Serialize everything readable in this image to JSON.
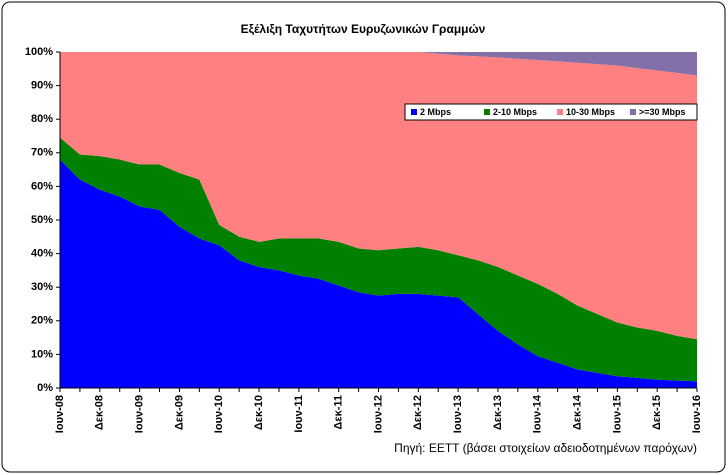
{
  "chart_data": {
    "type": "stacked_area",
    "title": "Εξέλιξη Ταχυτήτων Ευρυζωνικών Γραμμών",
    "source": "Πηγή: ΕΕΤΤ (βάσει στοιχείων αδειοδοτημένων παρόχων)",
    "categories": [
      "Ιουν-08",
      null,
      "Δεκ-08",
      null,
      "Ιουν-09",
      null,
      "Δεκ-09",
      null,
      "Ιουν-10",
      null,
      "Δεκ-10",
      null,
      "Ιουν-11",
      null,
      "Δεκ-11",
      null,
      "Ιουν-12",
      null,
      "Δεκ-12",
      null,
      "Ιουν-13",
      null,
      "Δεκ-13",
      null,
      "Ιουν-14",
      null,
      "Δεκ-14",
      null,
      "Ιουν-15",
      null,
      "Δεκ-15",
      null,
      "Ιουν-16"
    ],
    "series": [
      {
        "name": "2 Mbps",
        "color": "#0000ff",
        "values": [
          68,
          62,
          59,
          57,
          54,
          53,
          48,
          44.5,
          42.5,
          38,
          36,
          35,
          33.5,
          32.5,
          30.5,
          28.5,
          27.5,
          28,
          28,
          27.5,
          27,
          22,
          17,
          13,
          9.5,
          7.5,
          5.5,
          4.5,
          3.5,
          3,
          2.5,
          2.2,
          2
        ]
      },
      {
        "name": "2-10 Mbps",
        "color": "#008000",
        "values": [
          6.5,
          7.5,
          10,
          11,
          12.5,
          13.5,
          16,
          17.5,
          6,
          7,
          7.5,
          9.5,
          11,
          12,
          13,
          13,
          13.5,
          13.5,
          14,
          13.5,
          12.5,
          16,
          19,
          20.5,
          21.5,
          20.5,
          19,
          17.5,
          16,
          15,
          14.5,
          13.3,
          12.5
        ]
      },
      {
        "name": "10-30 Mbps",
        "color": "#ff8080",
        "values": [
          25.5,
          30.5,
          31,
          32,
          33.5,
          33.5,
          36,
          38,
          51.5,
          55,
          56.5,
          55.5,
          55.5,
          55.5,
          56.5,
          58.5,
          59,
          58.5,
          58,
          58.5,
          59.5,
          60.7,
          62.4,
          64.5,
          66.6,
          69.2,
          72.3,
          74.4,
          76.5,
          77.2,
          77.5,
          78.3,
          78.5
        ]
      },
      {
        "name": ">=30 Mbps",
        "color": "#8470a8",
        "values": [
          0,
          0,
          0,
          0,
          0,
          0,
          0,
          0,
          0,
          0,
          0,
          0,
          0,
          0,
          0,
          0,
          0,
          0,
          0,
          0.5,
          1,
          1.3,
          1.6,
          2,
          2.4,
          2.8,
          3.2,
          3.6,
          4,
          4.8,
          5.5,
          6.2,
          7
        ]
      }
    ],
    "ylim": [
      0,
      100
    ],
    "yticks": [
      {
        "value": 0,
        "label": "0%"
      },
      {
        "value": 10,
        "label": "10%"
      },
      {
        "value": 20,
        "label": "20%"
      },
      {
        "value": 30,
        "label": "30%"
      },
      {
        "value": 40,
        "label": "40%"
      },
      {
        "value": 50,
        "label": "50%"
      },
      {
        "value": 60,
        "label": "60%"
      },
      {
        "value": 70,
        "label": "70%"
      },
      {
        "value": 80,
        "label": "80%"
      },
      {
        "value": 90,
        "label": "90%"
      },
      {
        "value": 100,
        "label": "100%"
      }
    ],
    "legend": "top-right"
  }
}
